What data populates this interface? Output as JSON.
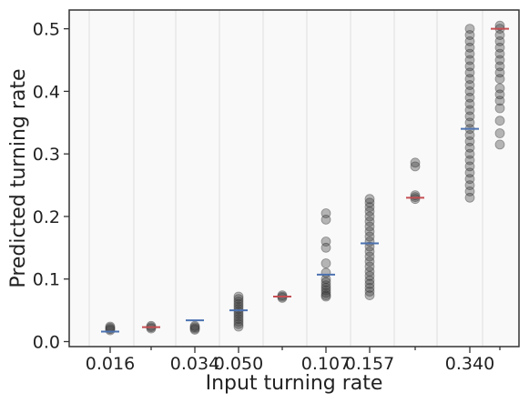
{
  "chart_data": {
    "type": "scatter",
    "xlabel": "Input turning rate",
    "ylabel": "Predicted turning rate",
    "ylim": [
      -0.008,
      0.53
    ],
    "y_ticks": [
      0.0,
      0.1,
      0.2,
      0.3,
      0.4,
      0.5
    ],
    "y_tick_labels": [
      "0.0",
      "0.1",
      "0.2",
      "0.3",
      "0.4",
      "0.5"
    ],
    "x_tick_labels": [
      "0.016",
      "0.034",
      "0.050",
      "0.107",
      "0.157",
      "0.340"
    ],
    "x_ticks_labeled_index": [
      0,
      2,
      3,
      5,
      6,
      8
    ],
    "grid": true,
    "legend": "none",
    "colors": {
      "points": "#333333",
      "marker_blue": "#4c72b0",
      "marker_red": "#c44e52",
      "plot_bg": "#f9f9f9",
      "grid": "#e5e5e5"
    },
    "groups": [
      {
        "input": 0.016,
        "marker": 0.016,
        "marker_color": "blue",
        "points": [
          0.018,
          0.02,
          0.022,
          0.024
        ]
      },
      {
        "input": 0.025,
        "marker": 0.023,
        "marker_color": "red",
        "points": [
          0.021,
          0.023,
          0.025
        ]
      },
      {
        "input": 0.034,
        "marker": 0.034,
        "marker_color": "blue",
        "points": [
          0.019,
          0.021,
          0.023,
          0.025
        ]
      },
      {
        "input": 0.05,
        "marker": 0.05,
        "marker_color": "blue",
        "points": [
          0.024,
          0.028,
          0.032,
          0.036,
          0.04,
          0.044,
          0.048,
          0.052,
          0.056,
          0.06,
          0.064,
          0.068,
          0.072
        ]
      },
      {
        "input": 0.075,
        "marker": 0.072,
        "marker_color": "red",
        "points": [
          0.07,
          0.072,
          0.074
        ]
      },
      {
        "input": 0.107,
        "marker": 0.107,
        "marker_color": "blue",
        "points": [
          0.072,
          0.074,
          0.078,
          0.082,
          0.086,
          0.09,
          0.095,
          0.1,
          0.11,
          0.125,
          0.15,
          0.16,
          0.195,
          0.205
        ]
      },
      {
        "input": 0.157,
        "marker": 0.157,
        "marker_color": "blue",
        "points": [
          0.074,
          0.08,
          0.086,
          0.092,
          0.098,
          0.105,
          0.112,
          0.12,
          0.128,
          0.136,
          0.144,
          0.152,
          0.16,
          0.168,
          0.176,
          0.184,
          0.192,
          0.2,
          0.208,
          0.215,
          0.222,
          0.228
        ]
      },
      {
        "input": 0.23,
        "marker": 0.23,
        "marker_color": "red",
        "points": [
          0.228,
          0.231,
          0.234,
          0.28,
          0.286
        ]
      },
      {
        "input": 0.34,
        "marker": 0.34,
        "marker_color": "blue",
        "points": [
          0.23,
          0.24,
          0.25,
          0.26,
          0.27,
          0.28,
          0.29,
          0.3,
          0.31,
          0.32,
          0.33,
          0.34,
          0.35,
          0.36,
          0.37,
          0.38,
          0.39,
          0.4,
          0.41,
          0.42,
          0.43,
          0.44,
          0.45,
          0.46,
          0.47,
          0.48,
          0.49,
          0.5
        ]
      },
      {
        "input": 0.5,
        "marker": 0.5,
        "marker_color": "red",
        "points": [
          0.315,
          0.333,
          0.353,
          0.373,
          0.385,
          0.395,
          0.405,
          0.42,
          0.43,
          0.44,
          0.45,
          0.46,
          0.47,
          0.48,
          0.49,
          0.5,
          0.505
        ]
      }
    ]
  }
}
